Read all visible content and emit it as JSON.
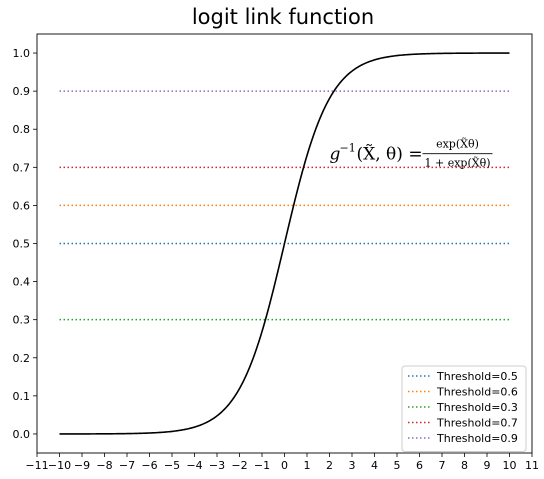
{
  "chart_data": {
    "type": "line",
    "title": "logit link function",
    "xlabel": "",
    "ylabel": "",
    "xlim": [
      -11,
      11
    ],
    "ylim": [
      -0.05,
      1.05
    ],
    "xticks": [
      -11,
      -10,
      -9,
      -8,
      -7,
      -6,
      -5,
      -4,
      -3,
      -2,
      -1,
      0,
      1,
      2,
      3,
      4,
      5,
      6,
      7,
      8,
      9,
      10,
      11
    ],
    "xtick_labels": [
      "−11",
      "−10",
      "−9",
      "−8",
      "−7",
      "−6",
      "−5",
      "−4",
      "−3",
      "−2",
      "−1",
      "0",
      "1",
      "2",
      "3",
      "4",
      "5",
      "6",
      "7",
      "8",
      "9",
      "10",
      "11"
    ],
    "yticks": [
      0.0,
      0.1,
      0.2,
      0.3,
      0.4,
      0.5,
      0.6,
      0.7,
      0.8,
      0.9,
      1.0
    ],
    "ytick_labels": [
      "0.0",
      "0.1",
      "0.2",
      "0.3",
      "0.4",
      "0.5",
      "0.6",
      "0.7",
      "0.8",
      "0.9",
      "1.0"
    ],
    "grid": false,
    "legend_position": "lower-right",
    "curve": {
      "function": "logistic",
      "color": "#000000",
      "x": [
        -10,
        -9,
        -8,
        -7,
        -6,
        -5,
        -4,
        -3,
        -2.5,
        -2,
        -1.5,
        -1,
        -0.5,
        0,
        0.5,
        1,
        1.5,
        2,
        2.5,
        3,
        4,
        5,
        6,
        7,
        8,
        9,
        10
      ],
      "y": [
        5e-05,
        0.00012,
        0.00034,
        0.00091,
        0.00247,
        0.00669,
        0.01799,
        0.04743,
        0.07586,
        0.1192,
        0.18243,
        0.26894,
        0.37754,
        0.5,
        0.62246,
        0.73106,
        0.81757,
        0.8808,
        0.92414,
        0.95257,
        0.98201,
        0.99331,
        0.99753,
        0.99909,
        0.99966,
        0.99988,
        0.99995
      ]
    },
    "series": [
      {
        "name": "Threshold=0.5",
        "y": 0.5,
        "x_range": [
          -10,
          10
        ],
        "color": "#1f77b4",
        "style": "dotted"
      },
      {
        "name": "Threshold=0.6",
        "y": 0.6,
        "x_range": [
          -10,
          10
        ],
        "color": "#ff7f0e",
        "style": "dotted"
      },
      {
        "name": "Threshold=0.3",
        "y": 0.3,
        "x_range": [
          -10,
          10
        ],
        "color": "#2ca02c",
        "style": "dotted"
      },
      {
        "name": "Threshold=0.7",
        "y": 0.7,
        "x_range": [
          -10,
          10
        ],
        "color": "#d62728",
        "style": "dotted"
      },
      {
        "name": "Threshold=0.9",
        "y": 0.9,
        "x_range": [
          -10,
          10
        ],
        "color": "#9467bd",
        "style": "dotted"
      }
    ],
    "annotation": {
      "x": 2,
      "y": 0.72,
      "lhs_g": "g",
      "lhs_exp": "−1",
      "lhs_args": "(X̃, θ) =",
      "numerator": "exp(X̃θ)",
      "denominator": "1 + exp(X̃θ)"
    }
  }
}
